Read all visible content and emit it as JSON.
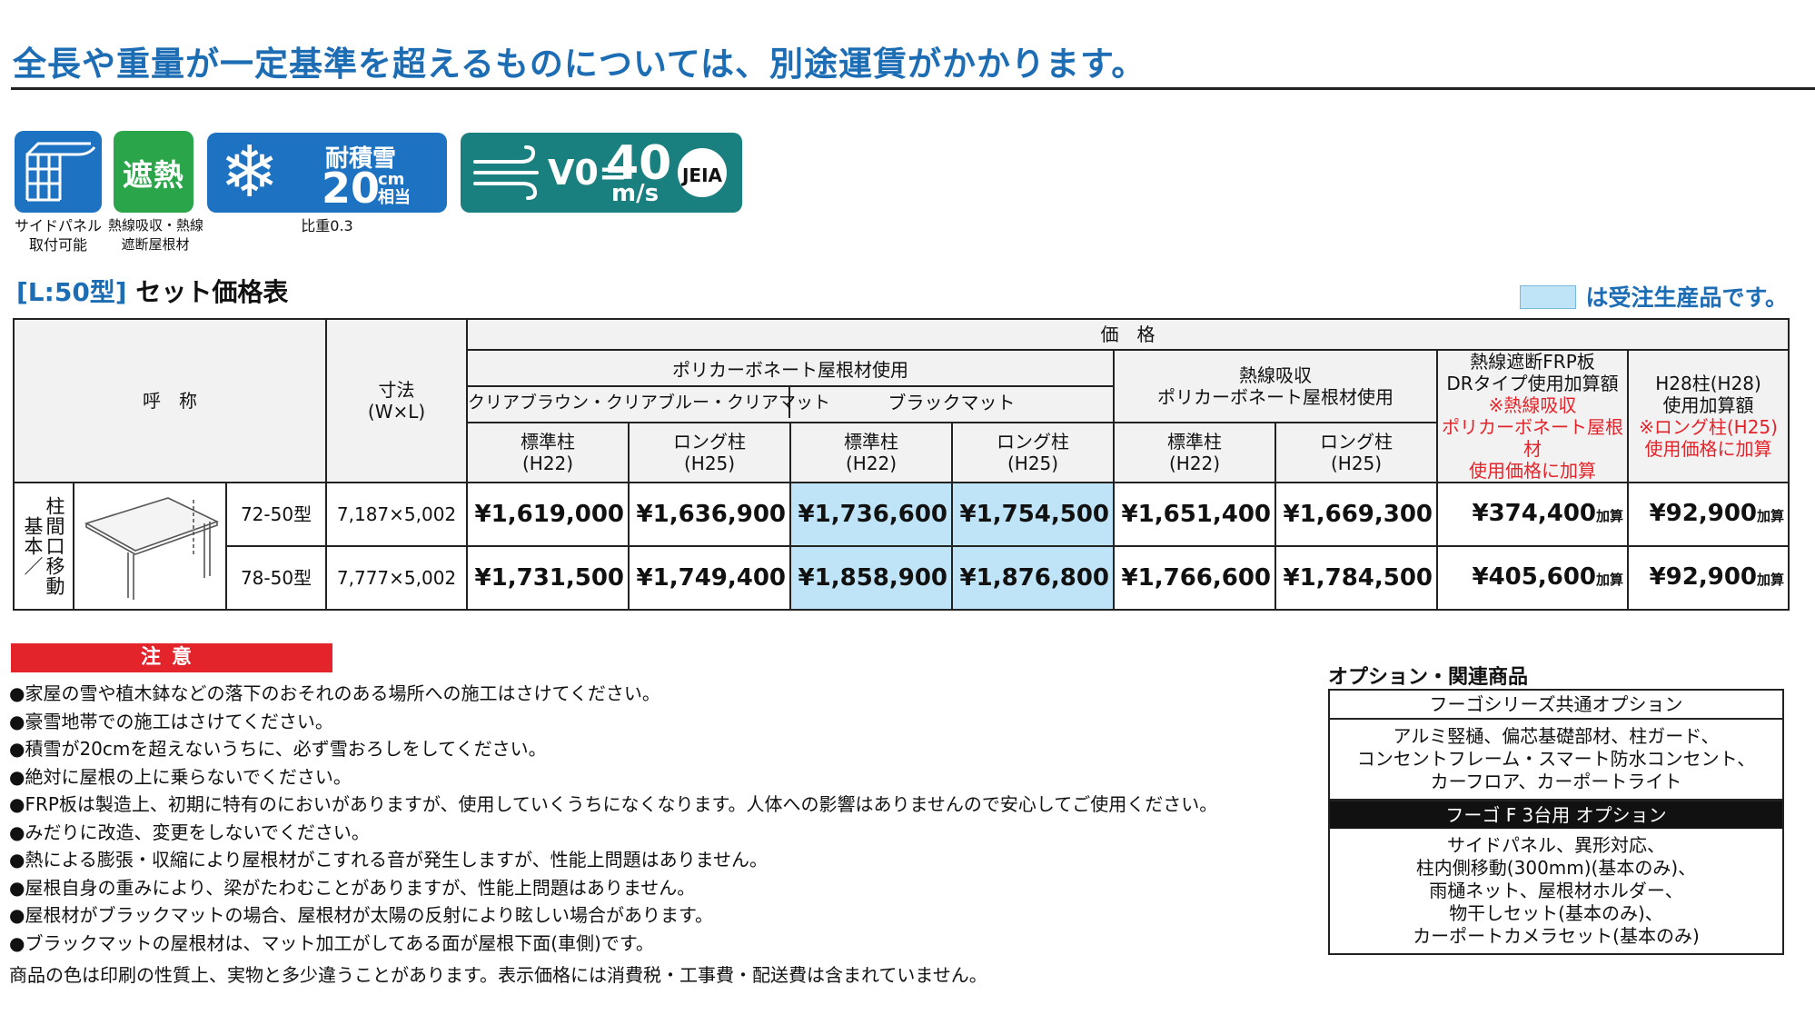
{
  "headline": "全長や重量が一定基準を超えるものについては、別途運賃がかかります。",
  "badges": {
    "side_panel": {
      "caption_1": "サイドパネル",
      "caption_2": "取付可能"
    },
    "heat": {
      "label": "遮熱",
      "caption_1": "熱線吸収・熱線",
      "caption_2": "遮断屋根材"
    },
    "snow": {
      "label": "耐積雪",
      "value": "20",
      "unit_1": "cm",
      "unit_2": "相当",
      "caption": "比重0.3"
    },
    "wind": {
      "prefix": "V0=",
      "value": "40",
      "unit": "m/s",
      "mark": "JEIA"
    }
  },
  "table_title": {
    "model": "[L:50型]",
    "text": "セット価格表"
  },
  "legend": {
    "text": "は受注生産品です。",
    "swatch_color": "#bfe3f7"
  },
  "table": {
    "head": {
      "name": "呼　称",
      "size_1": "寸法",
      "size_2": "(W×L)",
      "price": "価　格",
      "poly_group": "ポリカーボネート屋根材使用",
      "clear_group": "クリアブラウン・クリアブルー・クリアマット",
      "black_group": "ブラックマット",
      "heat_group_1": "熱線吸収",
      "heat_group_2": "ポリカーボネート屋根材使用",
      "std_post": "標準柱",
      "std_post_h": "(H22)",
      "long_post": "ロング柱",
      "long_post_h": "(H25)",
      "frp_1": "熱線遮断FRP板",
      "frp_2": "DRタイプ使用加算額",
      "frp_note_1": "※熱線吸収",
      "frp_note_2": "ポリカーボネート屋根材",
      "frp_note_3": "使用価格に加算",
      "h28_1": "H28柱(H28)",
      "h28_2": "使用加算額",
      "h28_note_1": "※ロング柱(H25)",
      "h28_note_2": "使用価格に加算"
    },
    "row_group": {
      "label_1": "柱間口移動",
      "label_2": "基本／"
    },
    "add_suffix": "加算",
    "rows": [
      {
        "model": "72-50型",
        "size": "7,187×5,002",
        "clear_std": "¥1,619,000",
        "clear_long": "¥1,636,900",
        "black_std": "¥1,736,600",
        "black_long": "¥1,754,500",
        "heat_std": "¥1,651,400",
        "heat_long": "¥1,669,300",
        "frp": "¥374,400",
        "h28": "¥92,900"
      },
      {
        "model": "78-50型",
        "size": "7,777×5,002",
        "clear_std": "¥1,731,500",
        "clear_long": "¥1,749,400",
        "black_std": "¥1,858,900",
        "black_long": "¥1,876,800",
        "heat_std": "¥1,766,600",
        "heat_long": "¥1,784,500",
        "frp": "¥405,600",
        "h28": "¥92,900"
      }
    ]
  },
  "notice": {
    "title": "注意",
    "items": [
      "●家屋の雪や植木鉢などの落下のおそれのある場所への施工はさけてください。",
      "●豪雪地帯での施工はさけてください。",
      "●積雪が20cmを超えないうちに、必ず雪おろしをしてください。",
      "●絶対に屋根の上に乗らないでください。",
      "●FRP板は製造上、初期に特有のにおいがありますが、使用していくうちになくなります。人体への影響はありませんので安心してご使用ください。",
      "●みだりに改造、変更をしないでください。",
      "●熱による膨張・収縮により屋根材がこすれる音が発生しますが、性能上問題はありません。",
      "●屋根自身の重みにより、梁がたわむことがありますが、性能上問題はありません。",
      "●屋根材がブラックマットの場合、屋根材が太陽の反射により眩しい場合があります。",
      "●ブラックマットの屋根材は、マット加工がしてある面が屋根下面(車側)です。"
    ],
    "footer": "商品の色は印刷の性質上、実物と多少違うことがあります。表示価格には消費税・工事費・配送費は含まれていません。"
  },
  "options": {
    "title": "オプション・関連商品",
    "common": {
      "header": "フーゴシリーズ共通オプション",
      "lines": [
        "アルミ竪樋、偏芯基礎部材、柱ガード、",
        "コンセントフレーム・スマート防水コンセント、",
        "カーフロア、カーポートライト"
      ]
    },
    "f3": {
      "header": "フーゴ F 3台用 オプション",
      "lines": [
        "サイドパネル、異形対応、",
        "柱内側移動(300mm)(基本のみ)、",
        "雨樋ネット、屋根材ホルダー、",
        "物干しセット(基本のみ)、",
        "カーポートカメラセット(基本のみ)"
      ]
    }
  }
}
